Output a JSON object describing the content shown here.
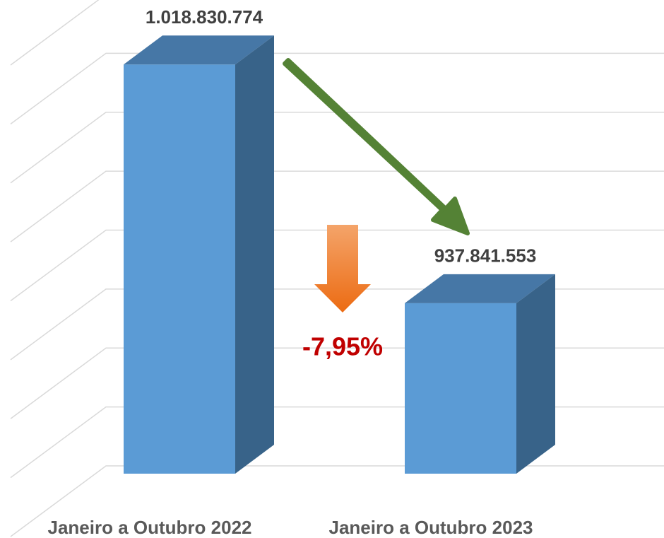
{
  "chart_data": {
    "type": "bar3d",
    "categories": [
      "Janeiro a Outubro 2022",
      "Janeiro a Outubro 2023"
    ],
    "values": [
      1018830774,
      937841553
    ],
    "value_labels": [
      "1.018.830.774",
      "937.841.553"
    ],
    "color": "#5b9bd5",
    "ylim": [
      880000000,
      1040000000
    ],
    "yticks": [
      880000000,
      900000000,
      920000000,
      940000000,
      960000000,
      980000000,
      1000000000,
      1020000000,
      1040000000
    ],
    "grid": true,
    "annotation": "-7,95%"
  }
}
